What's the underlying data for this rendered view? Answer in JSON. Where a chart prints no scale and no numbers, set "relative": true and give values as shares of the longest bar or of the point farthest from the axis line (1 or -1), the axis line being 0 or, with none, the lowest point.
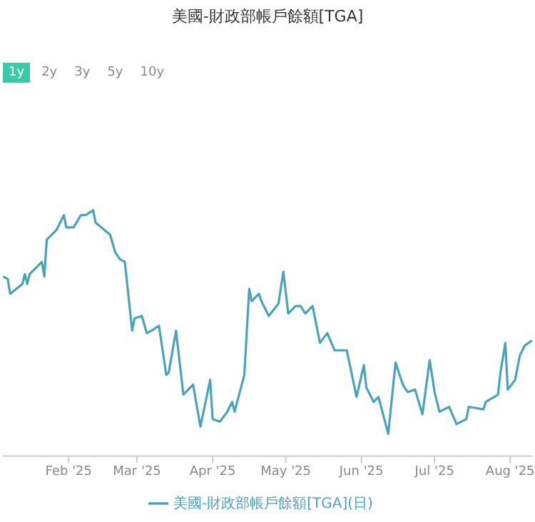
{
  "chart_data": {
    "type": "line",
    "title": "美國-財政部帳戶餘額[TGA]",
    "annotations": [
      "1y",
      "2y",
      "3y",
      "5y",
      "10y"
    ],
    "relative": true,
    "legend": "bottom",
    "marker": "none",
    "line_style": "solid",
    "xlim": [
      "2025-01-05",
      "2025-08-10"
    ],
    "xticks": [
      {
        "value": "2025-02-01",
        "label": "Feb '25"
      },
      {
        "value": "2025-03-01",
        "label": "Mar '25"
      },
      {
        "value": "2025-04-01",
        "label": "Apr '25"
      },
      {
        "value": "2025-05-01",
        "label": "May '25"
      },
      {
        "value": "2025-06-01",
        "label": "Jun '25"
      },
      {
        "value": "2025-07-01",
        "label": "Jul '25"
      },
      {
        "value": "2025-08-01",
        "label": "Aug '25"
      }
    ],
    "x": [
      "2025-01-05",
      "2025-01-07",
      "2025-01-08",
      "2025-01-13",
      "2025-01-14",
      "2025-01-15",
      "2025-01-16",
      "2025-01-21",
      "2025-01-22",
      "2025-01-23",
      "2025-01-27",
      "2025-01-30",
      "2025-01-31",
      "2025-02-03",
      "2025-02-06",
      "2025-02-08",
      "2025-02-11",
      "2025-02-12",
      "2025-02-18",
      "2025-02-20",
      "2025-02-22",
      "2025-02-24",
      "2025-02-27",
      "2025-02-28",
      "2025-03-03",
      "2025-03-05",
      "2025-03-07",
      "2025-03-10",
      "2025-03-13",
      "2025-03-14",
      "2025-03-17",
      "2025-03-20",
      "2025-03-24",
      "2025-03-27",
      "2025-03-31",
      "2025-04-01",
      "2025-04-04",
      "2025-04-07",
      "2025-04-09",
      "2025-04-10",
      "2025-04-14",
      "2025-04-16",
      "2025-04-17",
      "2025-04-20",
      "2025-04-21",
      "2025-04-24",
      "2025-04-28",
      "2025-04-30",
      "2025-05-02",
      "2025-05-05",
      "2025-05-07",
      "2025-05-09",
      "2025-05-12",
      "2025-05-15",
      "2025-05-18",
      "2025-05-21",
      "2025-05-26",
      "2025-05-30",
      "2025-06-02",
      "2025-06-03",
      "2025-06-06",
      "2025-06-08",
      "2025-06-12",
      "2025-06-15",
      "2025-06-18",
      "2025-06-20",
      "2025-06-23",
      "2025-06-26",
      "2025-06-29",
      "2025-07-01",
      "2025-07-03",
      "2025-07-07",
      "2025-07-10",
      "2025-07-14",
      "2025-07-15",
      "2025-07-21",
      "2025-07-22",
      "2025-07-27",
      "2025-07-28",
      "2025-07-30",
      "2025-07-31",
      "2025-08-03",
      "2025-08-05",
      "2025-08-07",
      "2025-08-10"
    ],
    "series": [
      {
        "name": "美國-財政部帳戶餘額[TGA](日)",
        "color": "#4aa3b8",
        "values": [
          0.73,
          0.72,
          0.66,
          0.7,
          0.74,
          0.7,
          0.74,
          0.79,
          0.73,
          0.88,
          0.92,
          0.98,
          0.93,
          0.93,
          0.98,
          0.98,
          1,
          0.95,
          0.9,
          0.83,
          0.8,
          0.79,
          0.51,
          0.56,
          0.57,
          0.5,
          0.51,
          0.53,
          0.33,
          0.34,
          0.51,
          0.25,
          0.29,
          0.12,
          0.31,
          0.15,
          0.14,
          0.18,
          0.22,
          0.18,
          0.33,
          0.68,
          0.63,
          0.66,
          0.63,
          0.57,
          0.62,
          0.75,
          0.58,
          0.61,
          0.61,
          0.58,
          0.61,
          0.46,
          0.5,
          0.43,
          0.43,
          0.24,
          0.37,
          0.28,
          0.22,
          0.24,
          0.09,
          0.38,
          0.29,
          0.26,
          0.27,
          0.17,
          0.39,
          0.26,
          0.18,
          0.2,
          0.13,
          0.15,
          0.2,
          0.19,
          0.22,
          0.25,
          0.34,
          0.46,
          0.27,
          0.31,
          0.41,
          0.45,
          0.47
        ]
      }
    ]
  }
}
